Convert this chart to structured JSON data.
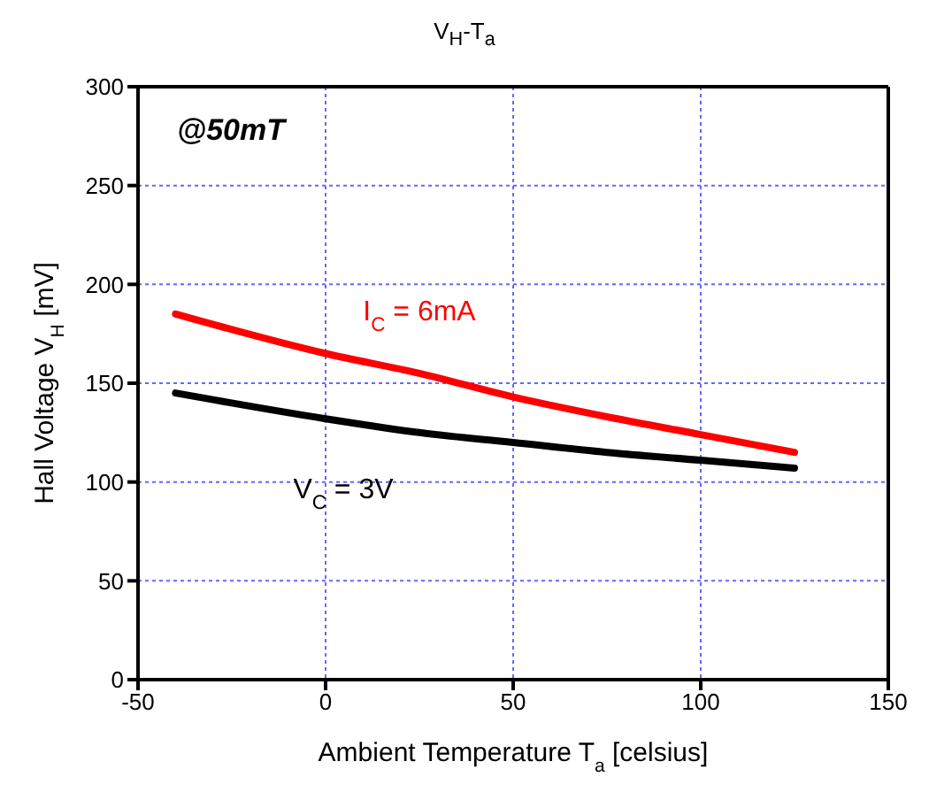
{
  "chart_data": {
    "type": "line",
    "title": "V$_{H}$-T$_{a}$",
    "xlabel": "Ambient Temperature T$_{a}$ [celsius]",
    "ylabel": "Hall Voltage V$_{H}$ [mV]",
    "x": [
      -40,
      0,
      25,
      50,
      75,
      100,
      125
    ],
    "series": [
      {
        "name": "I$_{C}$ = 6mA",
        "color": "#ff0000",
        "values": [
          185,
          165,
          155,
          143,
          133,
          124,
          115
        ]
      },
      {
        "name": "V$_{C}$ = 3V",
        "color": "#000000",
        "values": [
          145,
          132,
          125,
          120,
          115,
          111,
          107
        ]
      }
    ],
    "xlim": [
      -50,
      150
    ],
    "xticks": [
      -50,
      0,
      50,
      100,
      150
    ],
    "ylim": [
      0,
      300
    ],
    "yticks": [
      0,
      50,
      100,
      150,
      200,
      250,
      300
    ],
    "grid": true,
    "legend": false,
    "marker": "none",
    "line_style": "solid",
    "annotations": [
      "@50mT"
    ]
  }
}
